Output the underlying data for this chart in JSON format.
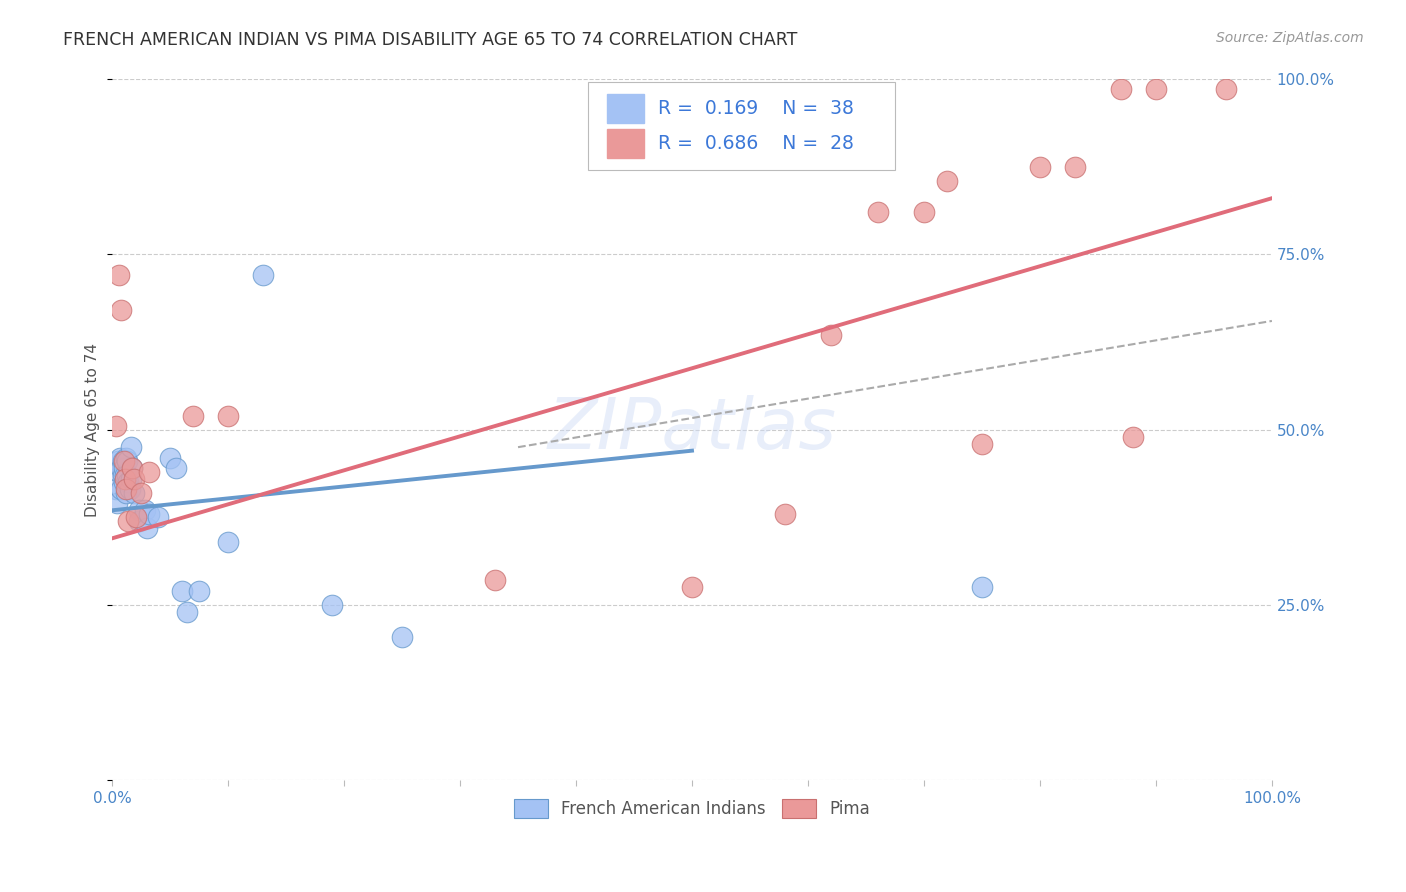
{
  "title": "FRENCH AMERICAN INDIAN VS PIMA DISABILITY AGE 65 TO 74 CORRELATION CHART",
  "source": "Source: ZipAtlas.com",
  "ylabel": "Disability Age 65 to 74",
  "xlim": [
    0,
    1
  ],
  "ylim": [
    0,
    1
  ],
  "yticks": [
    0.0,
    0.25,
    0.5,
    0.75,
    1.0
  ],
  "ytick_labels": [
    "",
    "25.0%",
    "50.0%",
    "75.0%",
    "100.0%"
  ],
  "watermark": "ZIPatlas",
  "blue_color": "#a4c2f4",
  "pink_color": "#ea9999",
  "blue_line_color": "#6699cc",
  "pink_line_color": "#e06c7a",
  "blue_scatter": [
    [
      0.003,
      0.415
    ],
    [
      0.004,
      0.395
    ],
    [
      0.005,
      0.455
    ],
    [
      0.006,
      0.44
    ],
    [
      0.007,
      0.46
    ],
    [
      0.008,
      0.445
    ],
    [
      0.008,
      0.415
    ],
    [
      0.009,
      0.455
    ],
    [
      0.009,
      0.435
    ],
    [
      0.01,
      0.445
    ],
    [
      0.01,
      0.425
    ],
    [
      0.011,
      0.435
    ],
    [
      0.012,
      0.46
    ],
    [
      0.012,
      0.41
    ],
    [
      0.013,
      0.455
    ],
    [
      0.013,
      0.435
    ],
    [
      0.014,
      0.425
    ],
    [
      0.015,
      0.415
    ],
    [
      0.016,
      0.475
    ],
    [
      0.016,
      0.43
    ],
    [
      0.017,
      0.445
    ],
    [
      0.019,
      0.41
    ],
    [
      0.023,
      0.385
    ],
    [
      0.023,
      0.37
    ],
    [
      0.028,
      0.385
    ],
    [
      0.03,
      0.36
    ],
    [
      0.032,
      0.38
    ],
    [
      0.04,
      0.375
    ],
    [
      0.05,
      0.46
    ],
    [
      0.055,
      0.445
    ],
    [
      0.06,
      0.27
    ],
    [
      0.065,
      0.24
    ],
    [
      0.075,
      0.27
    ],
    [
      0.1,
      0.34
    ],
    [
      0.13,
      0.72
    ],
    [
      0.19,
      0.25
    ],
    [
      0.25,
      0.205
    ],
    [
      0.75,
      0.275
    ]
  ],
  "pink_scatter": [
    [
      0.003,
      0.505
    ],
    [
      0.006,
      0.72
    ],
    [
      0.008,
      0.67
    ],
    [
      0.01,
      0.455
    ],
    [
      0.011,
      0.43
    ],
    [
      0.012,
      0.415
    ],
    [
      0.014,
      0.37
    ],
    [
      0.017,
      0.445
    ],
    [
      0.019,
      0.43
    ],
    [
      0.021,
      0.375
    ],
    [
      0.025,
      0.41
    ],
    [
      0.032,
      0.44
    ],
    [
      0.07,
      0.52
    ],
    [
      0.1,
      0.52
    ],
    [
      0.33,
      0.285
    ],
    [
      0.5,
      0.275
    ],
    [
      0.62,
      0.635
    ],
    [
      0.66,
      0.81
    ],
    [
      0.7,
      0.81
    ],
    [
      0.72,
      0.855
    ],
    [
      0.75,
      0.48
    ],
    [
      0.8,
      0.875
    ],
    [
      0.83,
      0.875
    ],
    [
      0.87,
      0.985
    ],
    [
      0.88,
      0.49
    ],
    [
      0.9,
      0.985
    ],
    [
      0.96,
      0.985
    ],
    [
      0.58,
      0.38
    ]
  ],
  "blue_line_x": [
    0.0,
    0.5
  ],
  "blue_line_y": [
    0.385,
    0.47
  ],
  "pink_line_x": [
    0.0,
    1.0
  ],
  "pink_line_y": [
    0.345,
    0.83
  ],
  "dashed_line_x": [
    0.35,
    1.0
  ],
  "dashed_line_y": [
    0.475,
    0.655
  ],
  "background_color": "#ffffff",
  "grid_color": "#cccccc"
}
